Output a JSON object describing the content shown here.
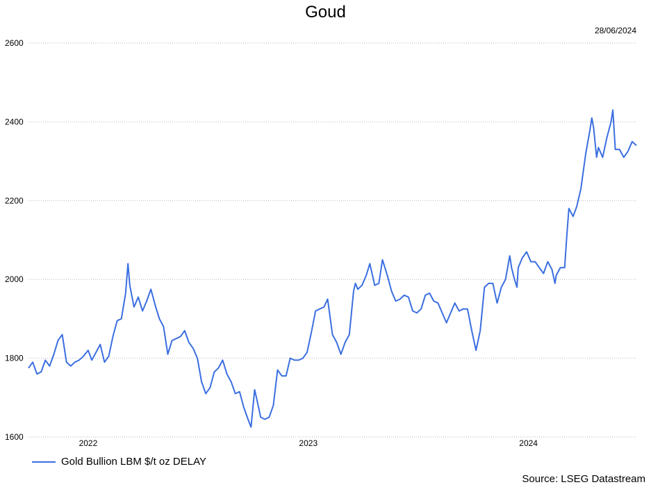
{
  "title": "Goud",
  "date": "28/06/2024",
  "source": "Source: LSEG Datastream",
  "colors": {
    "line": "#3a6ee0",
    "grid": "#b5b5b5"
  },
  "chart_data": {
    "type": "line",
    "title": "Goud",
    "xlabel": "",
    "ylabel": "",
    "ylim": [
      1600,
      2600
    ],
    "yticks": [
      1600,
      1800,
      2000,
      2200,
      2400,
      2600
    ],
    "xlim": [
      "2021-09-24",
      "2024-06-28"
    ],
    "xticks": [
      {
        "label": "2022",
        "x": "2022-01-01"
      },
      {
        "label": "2023",
        "x": "2023-01-01"
      },
      {
        "label": "2024",
        "x": "2024-01-01"
      }
    ],
    "grid": true,
    "legend_position": "bottom-left",
    "series": [
      {
        "name": "Gold Bullion LBM $/t oz DELAY",
        "points": [
          [
            "2021-09-24",
            1775
          ],
          [
            "2021-10-01",
            1790
          ],
          [
            "2021-10-08",
            1760
          ],
          [
            "2021-10-15",
            1765
          ],
          [
            "2021-10-22",
            1795
          ],
          [
            "2021-10-29",
            1780
          ],
          [
            "2021-11-05",
            1810
          ],
          [
            "2021-11-12",
            1845
          ],
          [
            "2021-11-19",
            1860
          ],
          [
            "2021-11-26",
            1790
          ],
          [
            "2021-12-03",
            1780
          ],
          [
            "2021-12-10",
            1790
          ],
          [
            "2021-12-17",
            1795
          ],
          [
            "2021-12-24",
            1805
          ],
          [
            "2022-01-01",
            1820
          ],
          [
            "2022-01-07",
            1795
          ],
          [
            "2022-01-14",
            1815
          ],
          [
            "2022-01-21",
            1835
          ],
          [
            "2022-01-28",
            1790
          ],
          [
            "2022-02-04",
            1805
          ],
          [
            "2022-02-11",
            1855
          ],
          [
            "2022-02-18",
            1895
          ],
          [
            "2022-02-25",
            1900
          ],
          [
            "2022-03-04",
            1965
          ],
          [
            "2022-03-08",
            2040
          ],
          [
            "2022-03-11",
            1985
          ],
          [
            "2022-03-18",
            1930
          ],
          [
            "2022-03-25",
            1955
          ],
          [
            "2022-04-01",
            1920
          ],
          [
            "2022-04-08",
            1945
          ],
          [
            "2022-04-15",
            1975
          ],
          [
            "2022-04-22",
            1935
          ],
          [
            "2022-04-29",
            1900
          ],
          [
            "2022-05-06",
            1880
          ],
          [
            "2022-05-13",
            1810
          ],
          [
            "2022-05-20",
            1845
          ],
          [
            "2022-05-27",
            1850
          ],
          [
            "2022-06-03",
            1855
          ],
          [
            "2022-06-10",
            1870
          ],
          [
            "2022-06-17",
            1840
          ],
          [
            "2022-06-24",
            1825
          ],
          [
            "2022-07-01",
            1800
          ],
          [
            "2022-07-08",
            1740
          ],
          [
            "2022-07-15",
            1710
          ],
          [
            "2022-07-22",
            1725
          ],
          [
            "2022-07-29",
            1765
          ],
          [
            "2022-08-05",
            1775
          ],
          [
            "2022-08-12",
            1795
          ],
          [
            "2022-08-19",
            1760
          ],
          [
            "2022-08-26",
            1740
          ],
          [
            "2022-09-02",
            1710
          ],
          [
            "2022-09-09",
            1715
          ],
          [
            "2022-09-16",
            1675
          ],
          [
            "2022-09-23",
            1645
          ],
          [
            "2022-09-28",
            1625
          ],
          [
            "2022-10-04",
            1720
          ],
          [
            "2022-10-07",
            1700
          ],
          [
            "2022-10-14",
            1650
          ],
          [
            "2022-10-21",
            1645
          ],
          [
            "2022-10-28",
            1650
          ],
          [
            "2022-11-04",
            1680
          ],
          [
            "2022-11-11",
            1770
          ],
          [
            "2022-11-18",
            1755
          ],
          [
            "2022-11-25",
            1755
          ],
          [
            "2022-12-02",
            1800
          ],
          [
            "2022-12-09",
            1795
          ],
          [
            "2022-12-16",
            1795
          ],
          [
            "2022-12-23",
            1800
          ],
          [
            "2022-12-30",
            1815
          ],
          [
            "2023-01-06",
            1865
          ],
          [
            "2023-01-13",
            1920
          ],
          [
            "2023-01-20",
            1925
          ],
          [
            "2023-01-27",
            1930
          ],
          [
            "2023-02-02",
            1950
          ],
          [
            "2023-02-10",
            1860
          ],
          [
            "2023-02-17",
            1840
          ],
          [
            "2023-02-24",
            1810
          ],
          [
            "2023-03-03",
            1840
          ],
          [
            "2023-03-10",
            1860
          ],
          [
            "2023-03-17",
            1970
          ],
          [
            "2023-03-20",
            1990
          ],
          [
            "2023-03-24",
            1975
          ],
          [
            "2023-03-31",
            1985
          ],
          [
            "2023-04-07",
            2010
          ],
          [
            "2023-04-13",
            2040
          ],
          [
            "2023-04-21",
            1985
          ],
          [
            "2023-04-28",
            1990
          ],
          [
            "2023-05-04",
            2050
          ],
          [
            "2023-05-12",
            2010
          ],
          [
            "2023-05-19",
            1970
          ],
          [
            "2023-05-26",
            1945
          ],
          [
            "2023-06-02",
            1950
          ],
          [
            "2023-06-09",
            1960
          ],
          [
            "2023-06-16",
            1955
          ],
          [
            "2023-06-23",
            1920
          ],
          [
            "2023-06-30",
            1915
          ],
          [
            "2023-07-07",
            1925
          ],
          [
            "2023-07-14",
            1960
          ],
          [
            "2023-07-21",
            1965
          ],
          [
            "2023-07-28",
            1945
          ],
          [
            "2023-08-04",
            1940
          ],
          [
            "2023-08-11",
            1915
          ],
          [
            "2023-08-18",
            1890
          ],
          [
            "2023-08-25",
            1915
          ],
          [
            "2023-09-01",
            1940
          ],
          [
            "2023-09-08",
            1920
          ],
          [
            "2023-09-15",
            1925
          ],
          [
            "2023-09-22",
            1925
          ],
          [
            "2023-09-29",
            1870
          ],
          [
            "2023-10-06",
            1820
          ],
          [
            "2023-10-13",
            1870
          ],
          [
            "2023-10-20",
            1980
          ],
          [
            "2023-10-27",
            1990
          ],
          [
            "2023-11-03",
            1990
          ],
          [
            "2023-11-10",
            1940
          ],
          [
            "2023-11-17",
            1980
          ],
          [
            "2023-11-24",
            2000
          ],
          [
            "2023-12-01",
            2060
          ],
          [
            "2023-12-04",
            2030
          ],
          [
            "2023-12-08",
            2005
          ],
          [
            "2023-12-13",
            1980
          ],
          [
            "2023-12-15",
            2030
          ],
          [
            "2023-12-22",
            2055
          ],
          [
            "2023-12-29",
            2070
          ],
          [
            "2024-01-05",
            2045
          ],
          [
            "2024-01-12",
            2045
          ],
          [
            "2024-01-19",
            2030
          ],
          [
            "2024-01-26",
            2015
          ],
          [
            "2024-02-02",
            2045
          ],
          [
            "2024-02-09",
            2025
          ],
          [
            "2024-02-14",
            1990
          ],
          [
            "2024-02-16",
            2010
          ],
          [
            "2024-02-23",
            2030
          ],
          [
            "2024-03-01",
            2030
          ],
          [
            "2024-03-05",
            2120
          ],
          [
            "2024-03-08",
            2180
          ],
          [
            "2024-03-15",
            2160
          ],
          [
            "2024-03-21",
            2185
          ],
          [
            "2024-03-28",
            2230
          ],
          [
            "2024-04-05",
            2320
          ],
          [
            "2024-04-12",
            2380
          ],
          [
            "2024-04-15",
            2410
          ],
          [
            "2024-04-18",
            2385
          ],
          [
            "2024-04-23",
            2310
          ],
          [
            "2024-04-26",
            2335
          ],
          [
            "2024-05-03",
            2310
          ],
          [
            "2024-05-10",
            2360
          ],
          [
            "2024-05-17",
            2400
          ],
          [
            "2024-05-20",
            2430
          ],
          [
            "2024-05-24",
            2330
          ],
          [
            "2024-05-31",
            2330
          ],
          [
            "2024-06-07",
            2310
          ],
          [
            "2024-06-14",
            2325
          ],
          [
            "2024-06-21",
            2350
          ],
          [
            "2024-06-28",
            2340
          ]
        ]
      }
    ]
  }
}
